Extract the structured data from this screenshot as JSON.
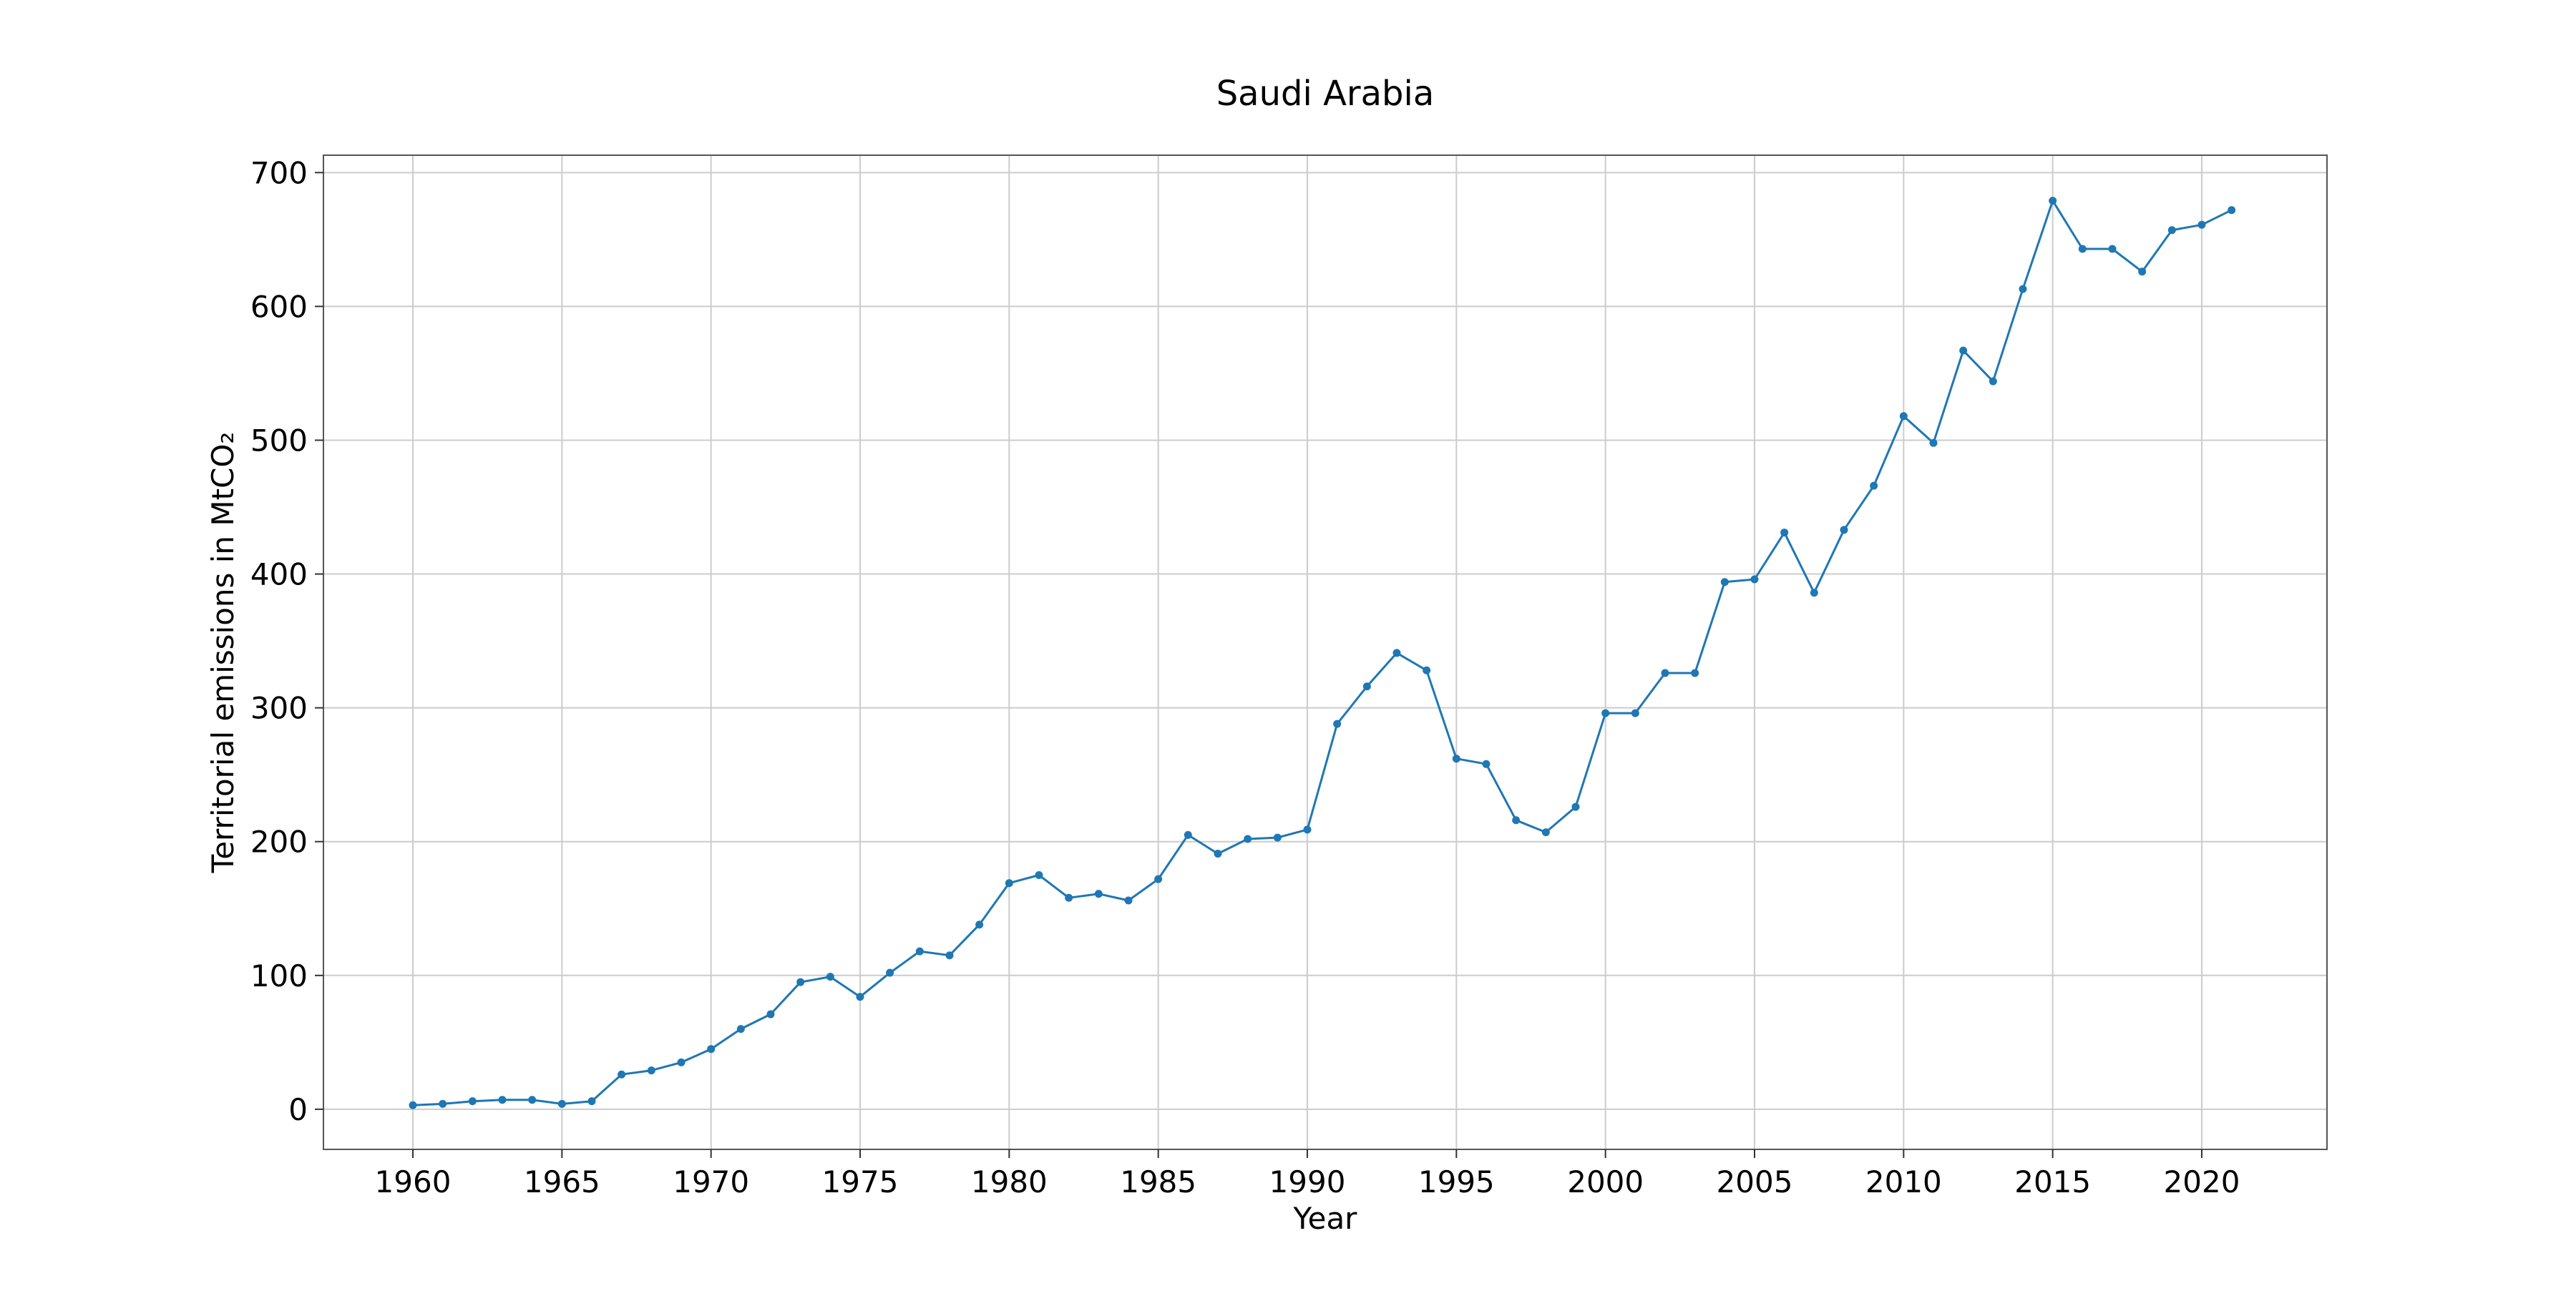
{
  "chart_data": {
    "type": "line",
    "title": "Saudi Arabia",
    "xlabel": "Year",
    "ylabel": "Territorial emissions in MtCO₂",
    "xlim": [
      1957,
      2024.2
    ],
    "ylim": [
      -30,
      713
    ],
    "x_ticks": [
      1960,
      1965,
      1970,
      1975,
      1980,
      1985,
      1990,
      1995,
      2000,
      2005,
      2010,
      2015,
      2020
    ],
    "y_ticks": [
      0,
      100,
      200,
      300,
      400,
      500,
      600,
      700
    ],
    "grid": true,
    "legend": "none",
    "series": [
      {
        "color": "#1f77b4",
        "marker": "circle",
        "x": [
          1960,
          1961,
          1962,
          1963,
          1964,
          1965,
          1966,
          1967,
          1968,
          1969,
          1970,
          1971,
          1972,
          1973,
          1974,
          1975,
          1976,
          1977,
          1978,
          1979,
          1980,
          1981,
          1982,
          1983,
          1984,
          1985,
          1986,
          1987,
          1988,
          1989,
          1990,
          1991,
          1992,
          1993,
          1994,
          1995,
          1996,
          1997,
          1998,
          1999,
          2000,
          2001,
          2002,
          2003,
          2004,
          2005,
          2006,
          2007,
          2008,
          2009,
          2010,
          2011,
          2012,
          2013,
          2014,
          2015,
          2016,
          2017,
          2018,
          2019,
          2020,
          2021
        ],
        "y": [
          3,
          4,
          6,
          7,
          7,
          4,
          6,
          26,
          29,
          35,
          45,
          60,
          71,
          95,
          99,
          84,
          102,
          118,
          115,
          138,
          169,
          175,
          158,
          161,
          156,
          172,
          205,
          191,
          202,
          203,
          209,
          288,
          316,
          341,
          328,
          262,
          258,
          216,
          207,
          226,
          296,
          296,
          326,
          326,
          394,
          396,
          431,
          386,
          433,
          466,
          518,
          498,
          567,
          544,
          613,
          679,
          643,
          643,
          626,
          657,
          661,
          672
        ]
      }
    ]
  }
}
